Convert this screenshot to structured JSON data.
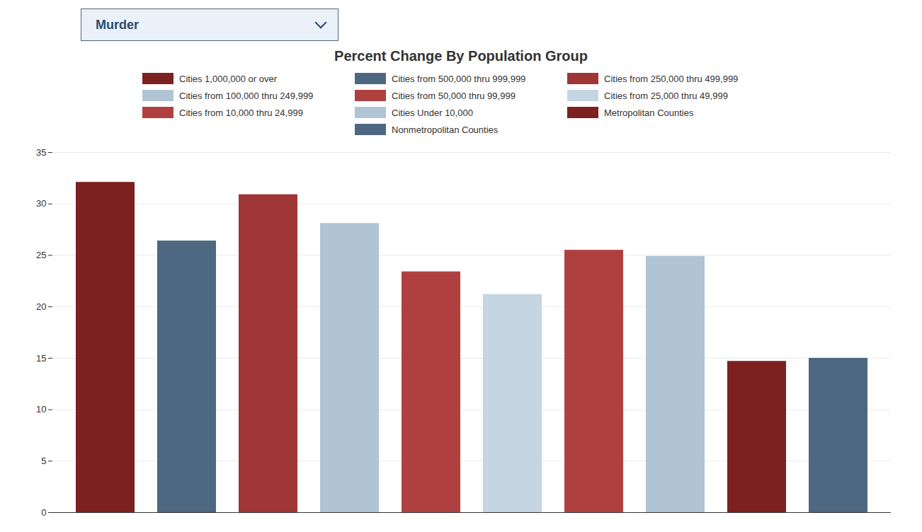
{
  "chart_data": {
    "type": "bar",
    "title": "Percent Change By Population Group",
    "annotations": [
      "Murder"
    ],
    "categories": [
      "Cities 1,000,000 or over",
      "Cities from 500,000 thru 999,999",
      "Cities from 250,000 thru 499,999",
      "Cities from 100,000 thru 249,999",
      "Cities from 50,000 thru 99,999",
      "Cities from 25,000 thru 49,999",
      "Cities from 10,000 thru 24,999",
      "Cities Under 10,000",
      "Metropolitan Counties",
      "Nonmetropolitan Counties"
    ],
    "values": [
      32.1,
      26.4,
      30.9,
      28.1,
      23.4,
      21.2,
      25.5,
      24.9,
      14.7,
      15.0
    ],
    "colors": [
      "#7d2020",
      "#4d6880",
      "#a03535",
      "#b0c4d4",
      "#b04040",
      "#c5d5e2",
      "#b04040",
      "#b0c4d4",
      "#7d2020",
      "#4d6880"
    ],
    "ylim": [
      0,
      35
    ],
    "yticks": [
      0,
      5,
      10,
      15,
      20,
      25,
      30,
      35
    ],
    "grid": true,
    "legend": "top",
    "tick_labels": "y"
  }
}
